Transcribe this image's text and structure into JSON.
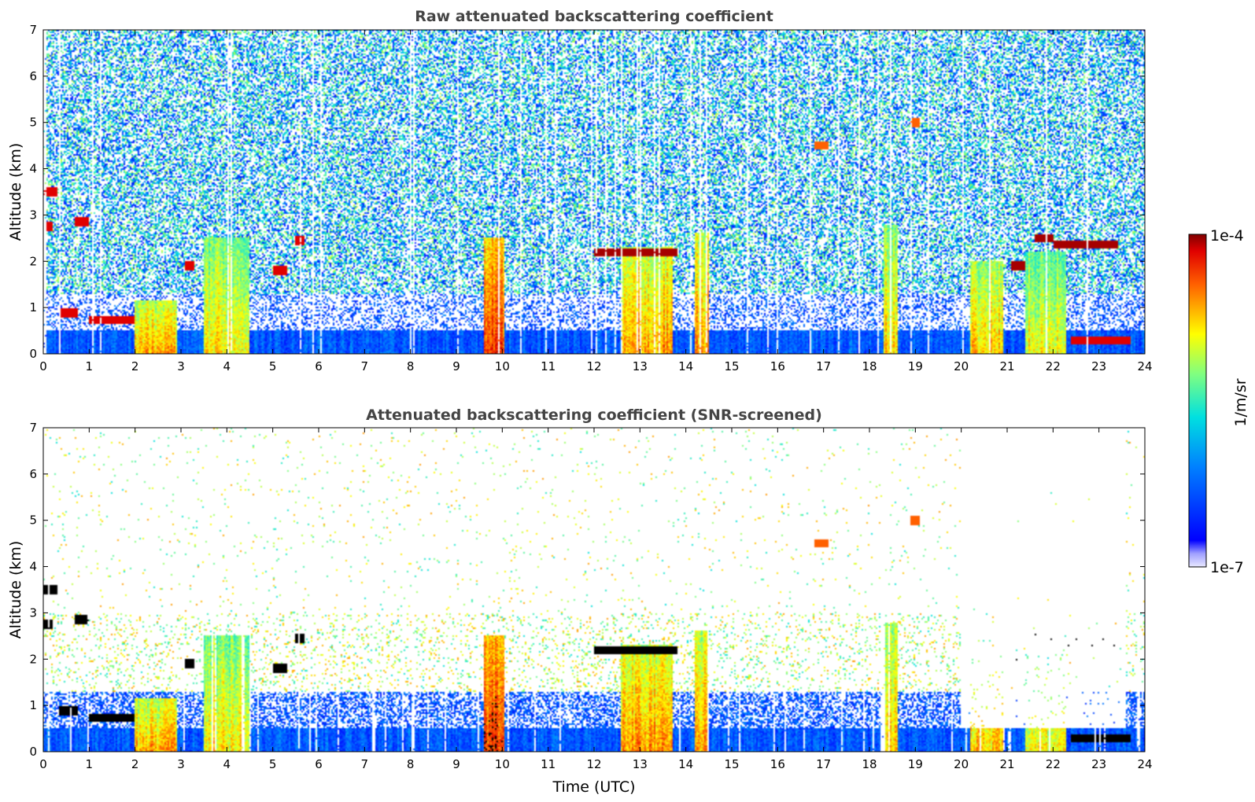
{
  "chart_data": [
    {
      "type": "heatmap",
      "title": "Raw attenuated backscattering coefficient",
      "xlabel": "",
      "ylabel": "Altitude (km)",
      "xlim": [
        0,
        24
      ],
      "ylim": [
        0,
        7
      ],
      "x_ticks": [
        "0",
        "1",
        "2",
        "3",
        "4",
        "5",
        "6",
        "7",
        "8",
        "9",
        "10",
        "11",
        "12",
        "13",
        "14",
        "15",
        "16",
        "17",
        "18",
        "19",
        "20",
        "21",
        "22",
        "23",
        "24"
      ],
      "y_ticks": [
        "0",
        "1",
        "2",
        "3",
        "4",
        "5",
        "6",
        "7"
      ],
      "grid": false,
      "colormap": "jet",
      "color_scale": "log",
      "value_range": [
        "1e-7",
        "1e-4"
      ],
      "features": {
        "boundary_layer_top_km": 0.5,
        "aerosol_layer_top_km": 1.3,
        "noise_top_km": 7,
        "intense_columns": [
          {
            "x": [
              2.0,
              2.9
            ],
            "ytop": 1.15,
            "level": 0.78
          },
          {
            "x": [
              3.5,
              4.5
            ],
            "ytop": 2.5,
            "level": 0.72
          },
          {
            "x": [
              9.6,
              10.05
            ],
            "ytop": 2.5,
            "level": 0.9
          },
          {
            "x": [
              12.6,
              13.7
            ],
            "ytop": 2.3,
            "level": 0.8
          },
          {
            "x": [
              14.2,
              14.5
            ],
            "ytop": 2.6,
            "level": 0.8
          },
          {
            "x": [
              18.3,
              18.6
            ],
            "ytop": 2.8,
            "level": 0.75
          },
          {
            "x": [
              20.2,
              20.9
            ],
            "ytop": 2.0,
            "level": 0.75
          },
          {
            "x": [
              21.4,
              22.3
            ],
            "ytop": 2.2,
            "level": 0.7
          }
        ],
        "layers": [
          {
            "x": [
              0.0,
              0.3
            ],
            "y": 3.5,
            "level": 0.95
          },
          {
            "x": [
              0.0,
              0.2
            ],
            "y": 2.75,
            "level": 0.95
          },
          {
            "x": [
              0.7,
              1.0
            ],
            "y": 2.85,
            "level": 0.95
          },
          {
            "x": [
              0.35,
              0.75
            ],
            "y": 0.88,
            "level": 0.95
          },
          {
            "x": [
              1.0,
              2.0
            ],
            "y": 0.72,
            "level": 0.95
          },
          {
            "x": [
              3.1,
              3.3
            ],
            "y": 1.9,
            "level": 0.95
          },
          {
            "x": [
              5.0,
              5.3
            ],
            "y": 1.8,
            "level": 0.95
          },
          {
            "x": [
              5.5,
              5.7
            ],
            "y": 2.45,
            "level": 0.95
          },
          {
            "x": [
              12.0,
              13.8
            ],
            "y": 2.2,
            "level": 0.98
          },
          {
            "x": [
              21.6,
              22.0
            ],
            "y": 2.5,
            "level": 0.98
          },
          {
            "x": [
              22.0,
              23.0
            ],
            "y": 2.35,
            "level": 0.98
          },
          {
            "x": [
              23.0,
              23.4
            ],
            "y": 2.35,
            "level": 0.98
          },
          {
            "x": [
              21.1,
              21.4
            ],
            "y": 1.9,
            "level": 0.98
          },
          {
            "x": [
              22.4,
              23.7
            ],
            "y": 0.3,
            "level": 0.95
          },
          {
            "x": [
              16.8,
              17.1
            ],
            "y": 4.5,
            "level": 0.85
          },
          {
            "x": [
              18.9,
              19.1
            ],
            "y": 5.0,
            "level": 0.85
          }
        ]
      }
    },
    {
      "type": "heatmap",
      "title": "Attenuated backscattering coefficient (SNR-screened)",
      "xlabel": "Time (UTC)",
      "ylabel": "Altitude (km)",
      "xlim": [
        0,
        24
      ],
      "ylim": [
        0,
        7
      ],
      "x_ticks": [
        "0",
        "1",
        "2",
        "3",
        "4",
        "5",
        "6",
        "7",
        "8",
        "9",
        "10",
        "11",
        "12",
        "13",
        "14",
        "15",
        "16",
        "17",
        "18",
        "19",
        "20",
        "21",
        "22",
        "23",
        "24"
      ],
      "y_ticks": [
        "0",
        "1",
        "2",
        "3",
        "4",
        "5",
        "6",
        "7"
      ],
      "grid": false,
      "colormap": "jet",
      "color_scale": "log",
      "value_range": [
        "1e-7",
        "1e-4"
      ],
      "features": {
        "screened_above_km": 3.0,
        "clear_sky_gap_hours": [
          [
            20.0,
            23.6
          ]
        ],
        "saturated_layer_color": "#000000"
      }
    }
  ],
  "colorbar": {
    "label": "1/m/sr",
    "top_label": "1e-4",
    "bottom_label": "1e-7"
  },
  "colors": {
    "title_color": "#444444",
    "axis_color": "#000000",
    "background": "#ffffff"
  }
}
